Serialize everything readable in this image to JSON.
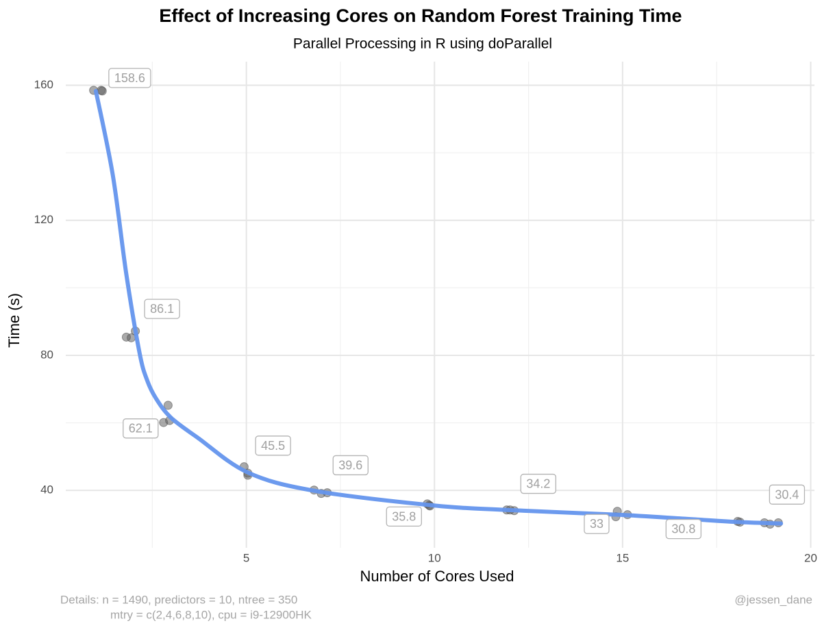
{
  "chart_data": {
    "type": "scatter",
    "title": "Effect of Increasing Cores on Random Forest Training Time",
    "subtitle": "Parallel Processing in R using doParallel",
    "x_label": "Number of Cores Used",
    "y_label": "Time (s)",
    "caption": [
      "Details: n = 1490, predictors = 10, ntree = 350",
      "mtry = c(2,4,6,8,10), cpu = i9-12900HK"
    ],
    "credit": "@jessen_dane",
    "xlim": [
      0.2,
      20.1
    ],
    "ylim": [
      23,
      167
    ],
    "xticks": [
      5,
      10,
      15,
      20
    ],
    "yticks": [
      40,
      80,
      120,
      160
    ],
    "x_minor_grid": [
      2.5,
      7.5,
      12.5,
      17.5
    ],
    "y_minor_grid": [
      60,
      100,
      140
    ],
    "grid": true,
    "points": {
      "color": "#555555",
      "x": [
        0.94,
        1.14,
        1.17,
        1.81,
        1.94,
        2.05,
        2.8,
        2.92,
        2.96,
        4.94,
        5.04,
        5.04,
        6.8,
        6.99,
        7.15,
        9.81,
        9.86,
        9.88,
        11.92,
        12.01,
        12.12,
        14.82,
        14.86,
        15.13,
        18.06,
        18.12,
        18.77,
        18.92,
        19.14
      ],
      "y": [
        158.5,
        158.5,
        158.3,
        85.4,
        85.2,
        87.2,
        60.1,
        65.2,
        60.7,
        47.0,
        45.1,
        44.5,
        40.1,
        39.1,
        39.3,
        36.0,
        35.6,
        35.4,
        34.2,
        34.2,
        34.0,
        32.2,
        33.8,
        32.8,
        30.8,
        30.6,
        30.4,
        30.0,
        30.4
      ]
    },
    "trend": {
      "color": "#6495ed",
      "x": [
        1.0,
        1.45,
        1.81,
        2.16,
        2.36,
        2.6,
        3.0,
        3.72,
        5.04,
        6.8,
        9.92,
        11.92,
        14.84,
        16.66,
        18.12,
        19.21
      ],
      "y": [
        158.3,
        133.4,
        104,
        80.8,
        72.7,
        67.2,
        61.5,
        55.5,
        45.3,
        39.9,
        35.6,
        34.2,
        32.8,
        31.6,
        30.6,
        30.2
      ]
    },
    "annotations": [
      {
        "label": "158.6",
        "x": 1.9,
        "y": 161.9
      },
      {
        "label": "86.1",
        "x": 2.76,
        "y": 93.5
      },
      {
        "label": "62.1",
        "x": 2.19,
        "y": 58.1
      },
      {
        "label": "45.5",
        "x": 5.71,
        "y": 53.0
      },
      {
        "label": "39.6",
        "x": 7.77,
        "y": 47.2
      },
      {
        "label": "35.8",
        "x": 9.19,
        "y": 32.0
      },
      {
        "label": "34.2",
        "x": 12.76,
        "y": 41.7
      },
      {
        "label": "33",
        "x": 14.31,
        "y": 29.8
      },
      {
        "label": "30.8",
        "x": 16.62,
        "y": 28.3
      },
      {
        "label": "30.4",
        "x": 19.37,
        "y": 38.5
      }
    ]
  }
}
